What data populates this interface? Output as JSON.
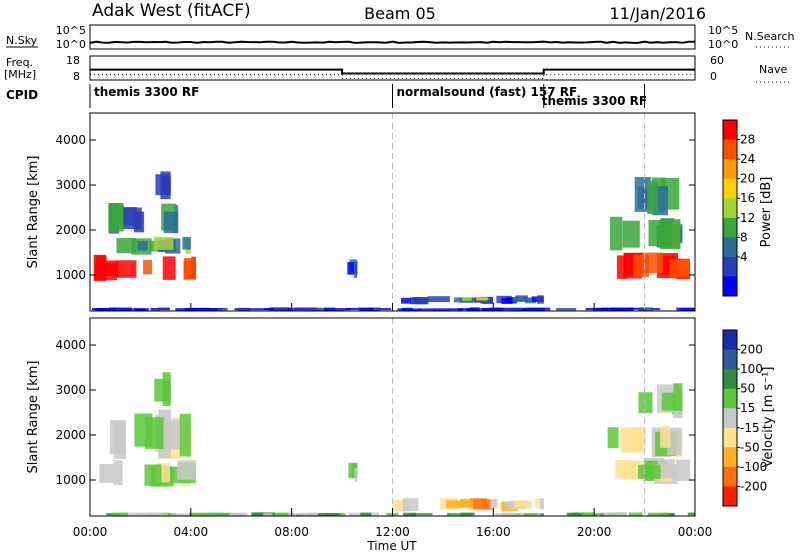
{
  "header": {
    "station": "Adak West (fitACF)",
    "beam": "Beam 05",
    "date": "11/Jan/2016"
  },
  "top_panels": {
    "nsky_label": "N.Sky",
    "nsky_ticks": [
      "10^5",
      "10^0"
    ],
    "nsearch_label": "N.Search",
    "nsearch_ticks": [
      "10^5",
      "10^0"
    ],
    "freq_label": "Freq.",
    "freq_unit": "[MHz]",
    "freq_ticks": [
      "18",
      "8"
    ],
    "nave_label": "Nave",
    "nave_ticks": [
      "60",
      "0"
    ],
    "cpid_label": "CPID",
    "cpid_segments": [
      {
        "name": "themis 3300 RF",
        "start_h": 0,
        "end_h": 12
      },
      {
        "name": "normalsound (fast) 157 RF",
        "start_h": 12,
        "end_h": 18
      },
      {
        "name": "themis 3300 RF",
        "start_h": 18,
        "end_h": 22
      }
    ]
  },
  "power_panel": {
    "ylabel": "Slant Range [km]",
    "colorbar_label": "Power [dB]",
    "colorbar_ticks": [
      "28",
      "24",
      "20",
      "16",
      "12",
      "8",
      "4"
    ],
    "colors": [
      "#ff0000",
      "#ff5000",
      "#ff9900",
      "#ffd000",
      "#a6d23a",
      "#3aa63a",
      "#2a6e9a",
      "#2a3cb8",
      "#0000ff"
    ]
  },
  "velocity_panel": {
    "ylabel": "Slant Range [km]",
    "colorbar_label": "Velocity [m s⁻¹]",
    "colorbar_ticks": [
      "200",
      "100",
      "50",
      "15",
      "-15",
      "-50",
      "-100",
      "-200"
    ],
    "colors": [
      "#1a2aa8",
      "#2e5a9a",
      "#2e8a3e",
      "#5ac83a",
      "#c8c8c8",
      "#ffe090",
      "#ffb020",
      "#ff7010",
      "#ff2000"
    ]
  },
  "chart_data": {
    "type": "heatmap",
    "xlabel": "Time UT",
    "x_ticks": [
      "00:00",
      "04:00",
      "08:00",
      "12:00",
      "16:00",
      "20:00",
      "00:00"
    ],
    "y_ticks": [
      "4000",
      "3000",
      "2000",
      "1000"
    ],
    "xlim_hours": [
      0,
      24
    ],
    "ylim_km": [
      200,
      4600
    ],
    "marker_lines_hours": [
      12,
      22
    ],
    "nsky_level": 1.4,
    "freq_mhz_segments": [
      {
        "start_h": 0,
        "end_h": 10,
        "value": 12.3
      },
      {
        "start_h": 10,
        "end_h": 18,
        "value": 10.7
      },
      {
        "start_h": 18,
        "end_h": 24,
        "value": 12.3
      }
    ],
    "power_patches": [
      {
        "t0": 0.1,
        "t1": 4.2,
        "r0": 850,
        "r1": 1450,
        "level": 0
      },
      {
        "t0": 0.3,
        "t1": 4.0,
        "r0": 1450,
        "r1": 1850,
        "level": 5
      },
      {
        "t0": 0.5,
        "t1": 3.5,
        "r0": 1900,
        "r1": 2600,
        "level": 6
      },
      {
        "t0": 2.0,
        "t1": 3.2,
        "r0": 2600,
        "r1": 3400,
        "level": 7
      },
      {
        "t0": 10.0,
        "t1": 10.6,
        "r0": 900,
        "r1": 1400,
        "level": 7
      },
      {
        "t0": 12.0,
        "t1": 18.0,
        "r0": 350,
        "r1": 550,
        "level": 7
      },
      {
        "t0": 14.7,
        "t1": 15.8,
        "r0": 420,
        "r1": 520,
        "level": 4
      },
      {
        "t0": 20.5,
        "t1": 23.8,
        "r0": 900,
        "r1": 1500,
        "level": 0
      },
      {
        "t0": 20.5,
        "t1": 23.5,
        "r0": 1500,
        "r1": 2300,
        "level": 5
      },
      {
        "t0": 21.5,
        "t1": 23.5,
        "r0": 2300,
        "r1": 3200,
        "level": 6
      },
      {
        "t0": 0.0,
        "t1": 24.0,
        "r0": 200,
        "r1": 280,
        "level": 8
      }
    ],
    "velocity_patches": [
      {
        "t0": 0.1,
        "t1": 4.2,
        "r0": 850,
        "r1": 1450,
        "level": 4
      },
      {
        "t0": 0.3,
        "t1": 4.0,
        "r0": 1450,
        "r1": 2600,
        "level": 4
      },
      {
        "t0": 2.0,
        "t1": 3.2,
        "r0": 2600,
        "r1": 3400,
        "level": 4
      },
      {
        "t0": 10.0,
        "t1": 10.6,
        "r0": 900,
        "r1": 1400,
        "level": 4
      },
      {
        "t0": 12.0,
        "t1": 18.0,
        "r0": 300,
        "r1": 600,
        "level": 5
      },
      {
        "t0": 14.5,
        "t1": 16.0,
        "r0": 350,
        "r1": 600,
        "level": 6
      },
      {
        "t0": 20.5,
        "t1": 23.8,
        "r0": 900,
        "r1": 1500,
        "level": 4
      },
      {
        "t0": 20.5,
        "t1": 23.5,
        "r0": 1500,
        "r1": 2300,
        "level": 4
      },
      {
        "t0": 21.5,
        "t1": 23.5,
        "r0": 2300,
        "r1": 3200,
        "level": 4
      },
      {
        "t0": 0.0,
        "t1": 24.0,
        "r0": 200,
        "r1": 280,
        "level": 3
      }
    ]
  }
}
